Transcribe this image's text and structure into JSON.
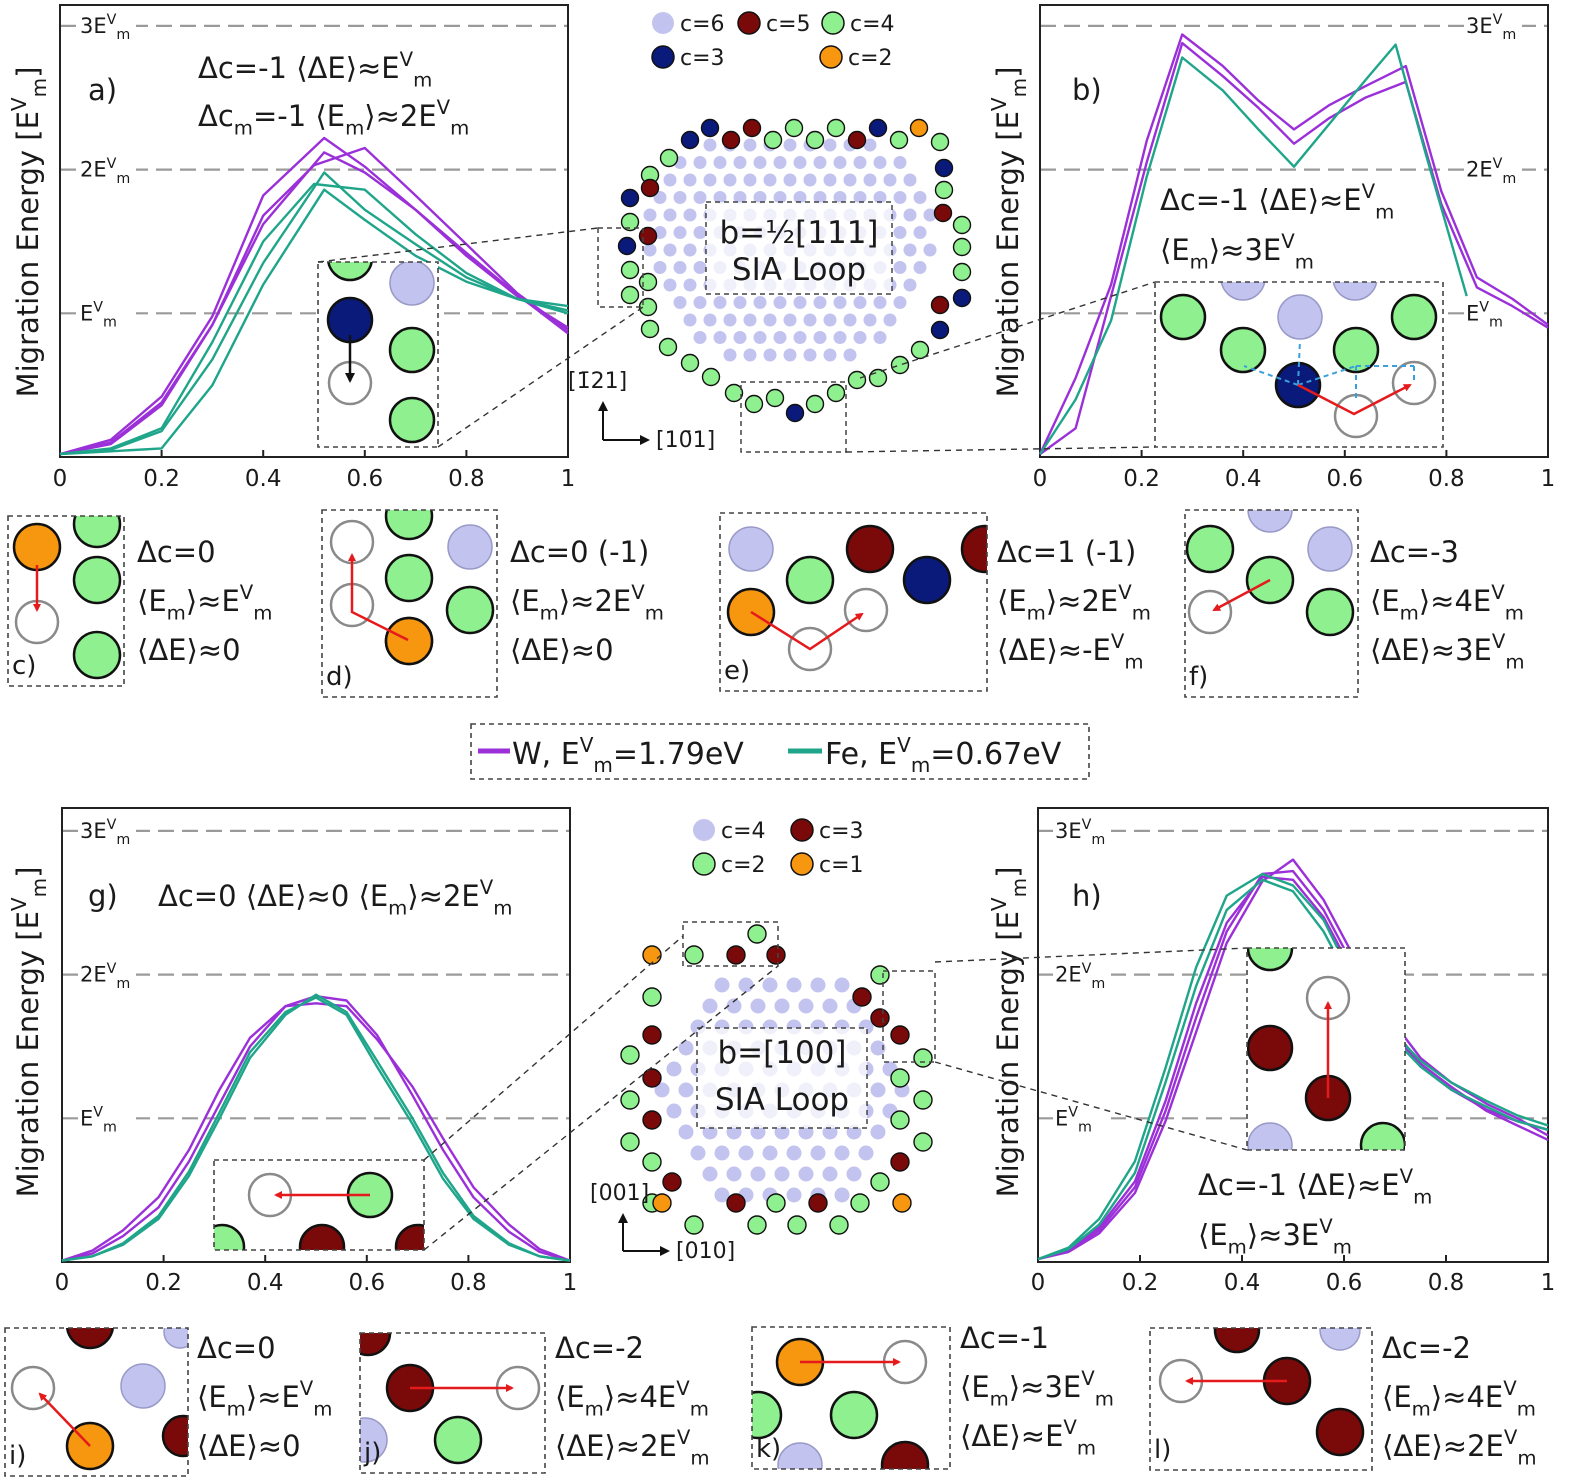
{
  "colors": {
    "W": "#9b30d9",
    "Fe": "#1fa58a",
    "c6": "#c3c3ef",
    "c5": "#7a0a0a",
    "c4": "#8ff08f",
    "c3": "#0a1a7a",
    "c2": "#f7960f",
    "arrow": "#e41a1c",
    "guide": "#3aa0dc"
  },
  "legend": {
    "w_name": "W,",
    "w_energy": "E",
    "w_sup": "V",
    "w_sub": "m",
    "w_value": "=1.79eV",
    "fe_name": "Fe,",
    "fe_energy": "E",
    "fe_sup": "V",
    "fe_sub": "m",
    "fe_value": "=0.67eV"
  },
  "common": {
    "ylabel_main": "Migration Energy [E",
    "ylabel_sup": "V",
    "ylabel_sub": "m",
    "ylabel_close": "]",
    "ref_lines": [
      {
        "prefix": "3E",
        "sup": "V",
        "sub": "m",
        "value": 3
      },
      {
        "prefix": "2E",
        "sup": "V",
        "sub": "m",
        "value": 2
      },
      {
        "prefix": "E",
        "sup": "V",
        "sub": "m",
        "value": 1
      }
    ]
  },
  "chart_data": [
    {
      "panel": "a)",
      "type": "line",
      "xlim": [
        0,
        1
      ],
      "ylim": [
        0,
        3.05
      ],
      "xticks": [
        "0",
        "0.2",
        "0.4",
        "0.6",
        "0.8",
        "1"
      ],
      "annotation": [
        "Δc=-1  ⟨ΔE⟩≈E^V_m",
        "Δc_m=-1 ⟨E_m⟩≈2E^V_m"
      ],
      "series": [
        {
          "name": "W",
          "x": [
            0,
            0.1,
            0.2,
            0.3,
            0.4,
            0.52,
            0.6,
            0.7,
            0.8,
            0.9,
            1
          ],
          "y": [
            0.02,
            0.12,
            0.42,
            0.98,
            1.82,
            2.22,
            2.02,
            1.72,
            1.42,
            1.13,
            0.86
          ]
        },
        {
          "name": "W",
          "x": [
            0,
            0.1,
            0.2,
            0.3,
            0.4,
            0.5,
            0.6,
            0.7,
            0.8,
            0.9,
            1
          ],
          "y": [
            0.02,
            0.09,
            0.36,
            0.92,
            1.68,
            2.03,
            2.15,
            1.82,
            1.48,
            1.14,
            0.88
          ]
        },
        {
          "name": "W",
          "x": [
            0,
            0.1,
            0.2,
            0.3,
            0.4,
            0.52,
            0.6,
            0.7,
            0.8,
            0.9,
            1
          ],
          "y": [
            0.02,
            0.1,
            0.38,
            0.92,
            1.62,
            2.12,
            1.98,
            1.72,
            1.4,
            1.12,
            0.9
          ]
        },
        {
          "name": "Fe",
          "x": [
            0,
            0.1,
            0.2,
            0.3,
            0.4,
            0.52,
            0.6,
            0.7,
            0.8,
            0.9,
            1
          ],
          "y": [
            0.02,
            0.05,
            0.18,
            0.68,
            1.35,
            1.98,
            1.72,
            1.48,
            1.25,
            1.1,
            1.0
          ]
        },
        {
          "name": "Fe",
          "x": [
            0,
            0.1,
            0.2,
            0.3,
            0.4,
            0.5,
            0.6,
            0.7,
            0.8,
            0.9,
            1
          ],
          "y": [
            0.02,
            0.06,
            0.2,
            0.8,
            1.5,
            1.9,
            1.86,
            1.55,
            1.28,
            1.1,
            1.02
          ]
        },
        {
          "name": "Fe",
          "x": [
            0,
            0.1,
            0.2,
            0.3,
            0.4,
            0.52,
            0.6,
            0.7,
            0.8,
            0.9,
            1
          ],
          "y": [
            0.02,
            0.04,
            0.06,
            0.5,
            1.2,
            1.86,
            1.65,
            1.4,
            1.22,
            1.1,
            1.05
          ]
        }
      ]
    },
    {
      "panel": "b)",
      "type": "line",
      "xlim": [
        0,
        1
      ],
      "ylim": [
        0,
        3.0
      ],
      "xticks": [
        "0",
        "0.2",
        "0.4",
        "0.6",
        "0.8",
        "1"
      ],
      "annotation": [
        "Δc=-1 ⟨ΔE⟩≈E^V_m",
        "⟨E_m⟩≈3E^V_m"
      ],
      "series": [
        {
          "name": "W",
          "x": [
            0,
            0.07,
            0.14,
            0.21,
            0.28,
            0.36,
            0.43,
            0.5,
            0.57,
            0.64,
            0.72,
            0.79,
            0.86,
            0.93,
            1
          ],
          "y": [
            0.02,
            0.55,
            1.2,
            2.2,
            2.94,
            2.72,
            2.48,
            2.28,
            2.45,
            2.58,
            2.72,
            1.85,
            1.25,
            1.1,
            0.92
          ]
        },
        {
          "name": "W",
          "x": [
            0,
            0.07,
            0.14,
            0.21,
            0.28,
            0.36,
            0.43,
            0.5,
            0.57,
            0.64,
            0.72,
            0.79,
            0.86,
            0.93,
            1
          ],
          "y": [
            0.02,
            0.2,
            1.12,
            2.05,
            2.88,
            2.65,
            2.43,
            2.18,
            2.36,
            2.5,
            2.61,
            1.76,
            1.18,
            1.05,
            0.9
          ]
        },
        {
          "name": "Fe",
          "x": [
            0,
            0.07,
            0.14,
            0.21,
            0.28,
            0.36,
            0.43,
            0.5,
            0.57,
            0.64,
            0.7,
            0.76,
            0.84
          ],
          "y": [
            0.02,
            0.4,
            0.95,
            1.95,
            2.78,
            2.55,
            2.28,
            2.02,
            2.32,
            2.62,
            2.87,
            2.1,
            1.12
          ]
        }
      ]
    },
    {
      "panel": "g)",
      "type": "line",
      "xlim": [
        0,
        1
      ],
      "ylim": [
        0,
        3.0
      ],
      "xticks": [
        "0",
        "0.2",
        "0.4",
        "0.6",
        "0.8",
        "1"
      ],
      "annotation": [
        "Δc=0  ⟨ΔE⟩≈0 ⟨E_m⟩≈2E^V_m"
      ],
      "series": [
        {
          "name": "W",
          "x": [
            0,
            0.06,
            0.12,
            0.19,
            0.25,
            0.31,
            0.37,
            0.44,
            0.5,
            0.56,
            0.62,
            0.69,
            0.75,
            0.81,
            0.88,
            0.94,
            1
          ],
          "y": [
            0.01,
            0.08,
            0.22,
            0.45,
            0.78,
            1.2,
            1.56,
            1.78,
            1.85,
            1.82,
            1.58,
            1.16,
            0.78,
            0.45,
            0.21,
            0.07,
            0.01
          ]
        },
        {
          "name": "W",
          "x": [
            0,
            0.06,
            0.12,
            0.19,
            0.25,
            0.31,
            0.37,
            0.44,
            0.5,
            0.56,
            0.62,
            0.69,
            0.75,
            0.81,
            0.88,
            0.94,
            1
          ],
          "y": [
            0.01,
            0.06,
            0.18,
            0.38,
            0.7,
            1.1,
            1.5,
            1.78,
            1.8,
            1.78,
            1.55,
            1.22,
            0.86,
            0.52,
            0.26,
            0.09,
            0.01
          ]
        },
        {
          "name": "Fe",
          "x": [
            0,
            0.06,
            0.12,
            0.19,
            0.25,
            0.31,
            0.37,
            0.44,
            0.5,
            0.56,
            0.62,
            0.69,
            0.75,
            0.81,
            0.88,
            0.94,
            1
          ],
          "y": [
            0.01,
            0.04,
            0.12,
            0.3,
            0.6,
            1.0,
            1.42,
            1.72,
            1.86,
            1.74,
            1.4,
            1.0,
            0.62,
            0.32,
            0.13,
            0.04,
            0.01
          ]
        },
        {
          "name": "Fe",
          "x": [
            0,
            0.06,
            0.12,
            0.19,
            0.25,
            0.31,
            0.37,
            0.44,
            0.5,
            0.56,
            0.62,
            0.69,
            0.75,
            0.81,
            0.88,
            0.94,
            1
          ],
          "y": [
            0.01,
            0.04,
            0.13,
            0.32,
            0.63,
            1.04,
            1.46,
            1.74,
            1.84,
            1.72,
            1.36,
            0.96,
            0.58,
            0.3,
            0.12,
            0.04,
            0.01
          ]
        }
      ]
    },
    {
      "panel": "h)",
      "type": "line",
      "xlim": [
        0,
        1
      ],
      "ylim": [
        0,
        3.0
      ],
      "xticks": [
        "0",
        "0.2",
        "0.4",
        "0.6",
        "0.8",
        "1"
      ],
      "annotation": [
        "Δc=-1  ⟨ΔE⟩≈E^V_m",
        "⟨E_m⟩≈3E^V_m"
      ],
      "series": [
        {
          "name": "W",
          "x": [
            0,
            0.06,
            0.12,
            0.19,
            0.25,
            0.31,
            0.37,
            0.44,
            0.5,
            0.56,
            0.62,
            0.69,
            0.75,
            0.81,
            0.88,
            0.94,
            1
          ],
          "y": [
            0.02,
            0.08,
            0.22,
            0.52,
            1.05,
            1.7,
            2.3,
            2.7,
            2.72,
            2.45,
            2.05,
            1.65,
            1.38,
            1.22,
            1.05,
            0.95,
            0.85
          ]
        },
        {
          "name": "W",
          "x": [
            0,
            0.06,
            0.12,
            0.19,
            0.25,
            0.31,
            0.37,
            0.44,
            0.5,
            0.56,
            0.62,
            0.69,
            0.75,
            0.81,
            0.88,
            0.94,
            1
          ],
          "y": [
            0.02,
            0.07,
            0.2,
            0.48,
            0.98,
            1.6,
            2.22,
            2.65,
            2.8,
            2.52,
            2.12,
            1.7,
            1.42,
            1.25,
            1.1,
            1.0,
            0.88
          ]
        },
        {
          "name": "W",
          "x": [
            0,
            0.06,
            0.12,
            0.19,
            0.25,
            0.31,
            0.37,
            0.44,
            0.5,
            0.56,
            0.62,
            0.69,
            0.75,
            0.81,
            0.88,
            0.94,
            1
          ],
          "y": [
            0.02,
            0.09,
            0.24,
            0.56,
            1.12,
            1.8,
            2.36,
            2.68,
            2.66,
            2.4,
            2.0,
            1.62,
            1.36,
            1.2,
            1.06,
            0.98,
            0.92
          ]
        },
        {
          "name": "Fe",
          "x": [
            0,
            0.06,
            0.12,
            0.19,
            0.25,
            0.31,
            0.37,
            0.44,
            0.5,
            0.56,
            0.62,
            0.69,
            0.75,
            0.81,
            0.88,
            0.94,
            1
          ],
          "y": [
            0.02,
            0.1,
            0.3,
            0.7,
            1.35,
            2.05,
            2.55,
            2.7,
            2.62,
            2.38,
            1.95,
            1.62,
            1.4,
            1.25,
            1.12,
            1.02,
            0.95
          ]
        },
        {
          "name": "Fe",
          "x": [
            0,
            0.06,
            0.12,
            0.19,
            0.25,
            0.31,
            0.37,
            0.44,
            0.5,
            0.56,
            0.62,
            0.69,
            0.75,
            0.81,
            0.88,
            0.94,
            1
          ],
          "y": [
            0.02,
            0.09,
            0.26,
            0.62,
            1.25,
            1.92,
            2.45,
            2.66,
            2.58,
            2.3,
            1.9,
            1.58,
            1.36,
            1.2,
            1.08,
            0.98,
            0.92
          ]
        }
      ]
    }
  ],
  "loop_top": {
    "label_line1": "b=½[111]",
    "label_line2": "SIA Loop",
    "axis_up": "[1̄21]",
    "axis_right": "[10̄1]",
    "legend": [
      {
        "label": "c=6",
        "color": "c6"
      },
      {
        "label": "c=5",
        "color": "c5"
      },
      {
        "label": "c=4",
        "color": "c4"
      },
      {
        "label": "c=3",
        "color": "c3"
      },
      {
        "label": "c=2",
        "color": "c2"
      }
    ]
  },
  "loop_bottom": {
    "label_line1": "b=[100]",
    "label_line2": "SIA Loop",
    "axis_up": "[001]",
    "axis_right": "[010]",
    "legend": [
      {
        "label": "c=4",
        "color": "c6"
      },
      {
        "label": "c=3",
        "color": "c5"
      },
      {
        "label": "c=2",
        "color": "c4"
      },
      {
        "label": "c=1",
        "color": "c2"
      }
    ]
  },
  "insets": [
    {
      "panel": "c)",
      "lines": [
        "Δc=0",
        "⟨E_m⟩≈E^V_m",
        "⟨ΔE⟩≈0"
      ]
    },
    {
      "panel": "d)",
      "lines": [
        "Δc=0 (-1)",
        "⟨E_m⟩≈2E^V_m",
        "⟨ΔE⟩≈0"
      ]
    },
    {
      "panel": "e)",
      "lines": [
        "Δc=1 (-1)",
        "⟨E_m⟩≈2E^V_m",
        "⟨ΔE⟩≈-E^V_m"
      ]
    },
    {
      "panel": "f)",
      "lines": [
        "Δc=-3",
        "⟨E_m⟩≈4E^V_m",
        "⟨ΔE⟩≈3E^V_m"
      ]
    },
    {
      "panel": "i)",
      "lines": [
        "Δc=0",
        "⟨E_m⟩≈E^V_m",
        "⟨ΔE⟩≈0"
      ]
    },
    {
      "panel": "j)",
      "lines": [
        "Δc=-2",
        "⟨E_m⟩≈4E^V_m",
        "⟨ΔE⟩≈2E^V_m"
      ]
    },
    {
      "panel": "k)",
      "lines": [
        "Δc=-1",
        "⟨E_m⟩≈3E^V_m",
        "⟨ΔE⟩≈E^V_m"
      ]
    },
    {
      "panel": "l)",
      "lines": [
        "Δc=-2",
        "⟨E_m⟩≈4E^V_m",
        "⟨ΔE⟩≈2E^V_m"
      ]
    }
  ]
}
